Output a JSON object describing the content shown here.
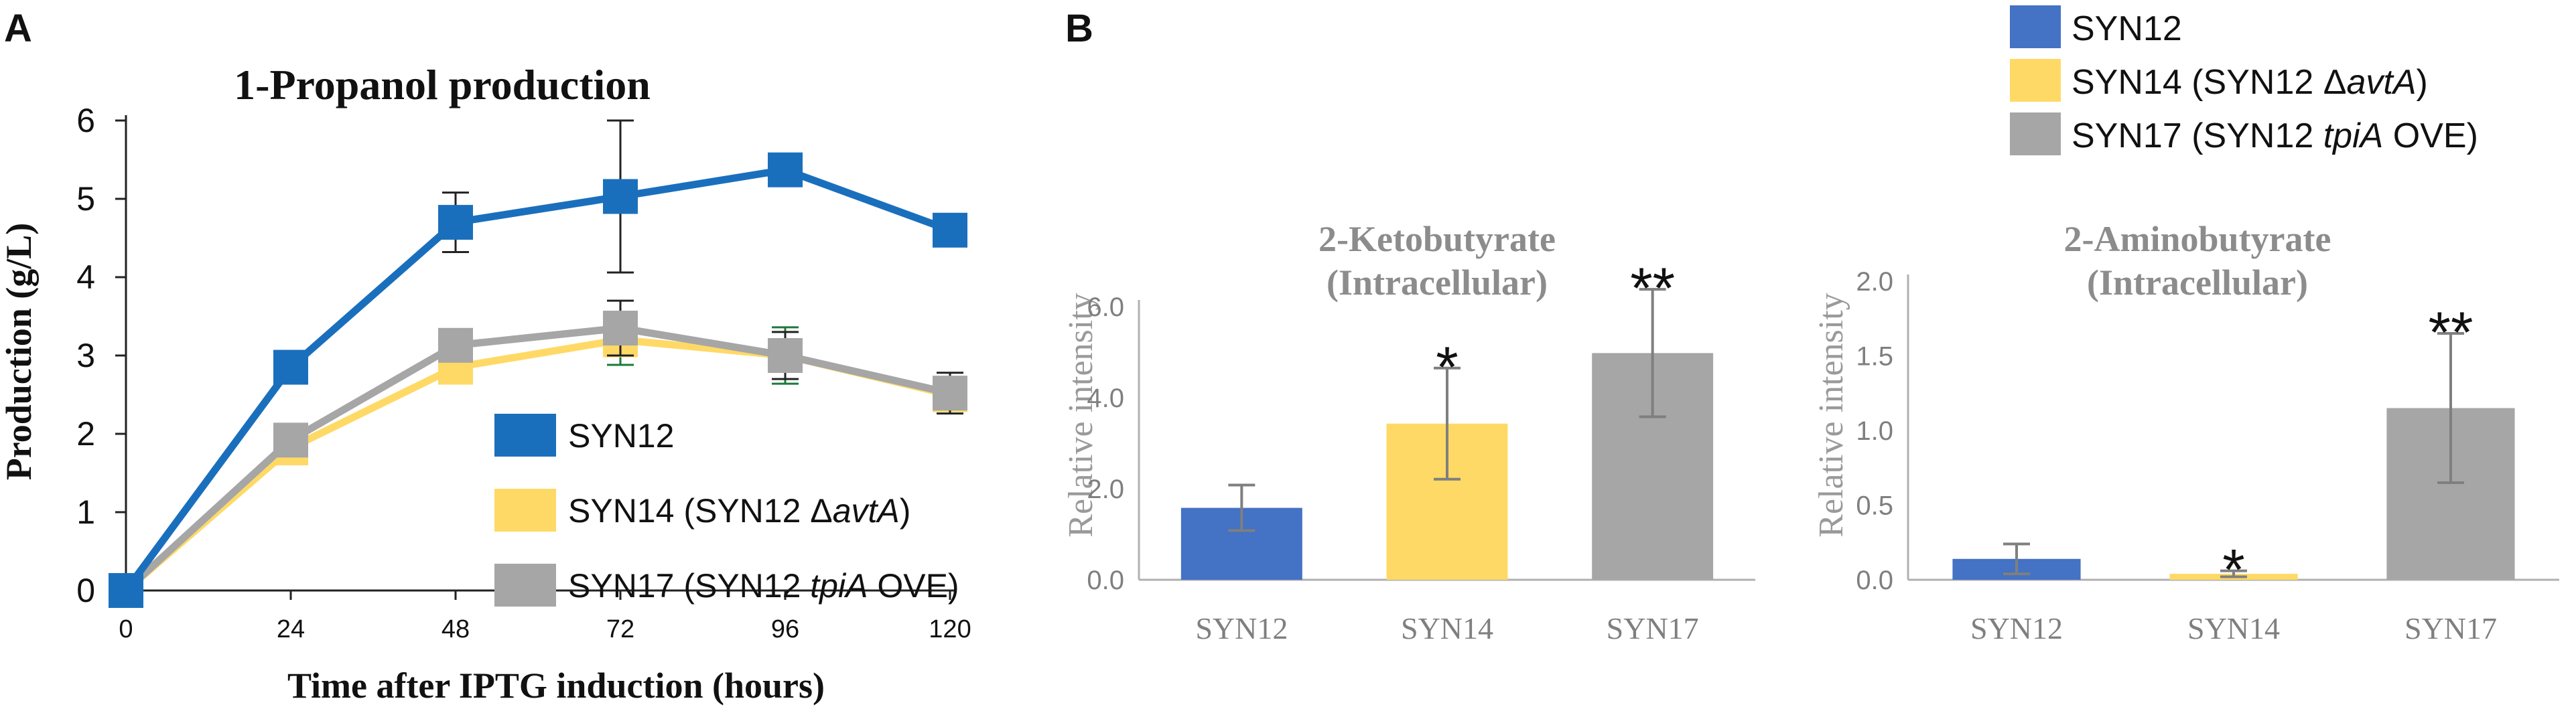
{
  "panels": {
    "a": {
      "letter": "A"
    },
    "b": {
      "letter": "B"
    }
  },
  "series_colors": {
    "SYN12": "#1a6fbd",
    "SYN14": "#ffd966",
    "SYN17": "#a6a6a6"
  },
  "bar_colors": {
    "SYN12": "#4472c4",
    "SYN14": "#ffd966",
    "SYN17": "#a6a6a6"
  },
  "chart_data": [
    {
      "id": "propanol",
      "type": "line",
      "title": "1-Propanol production",
      "xlabel": "Time after IPTG induction (hours)",
      "ylabel": "Production (g/L)",
      "x": [
        0,
        24,
        48,
        72,
        96,
        120
      ],
      "xticks": [
        "0",
        "24",
        "48",
        "72",
        "96",
        "120"
      ],
      "yticks": [
        "0",
        "1",
        "2",
        "3",
        "4",
        "5",
        "6"
      ],
      "xlim": [
        0,
        120
      ],
      "ylim": [
        0,
        6
      ],
      "series": [
        {
          "key": "SYN12",
          "name": "SYN12",
          "name_italic": "",
          "name_suffix": "",
          "values": [
            0,
            2.85,
            4.7,
            5.03,
            5.37,
            4.6
          ],
          "err": [
            0,
            0,
            0.38,
            0.97,
            0,
            0
          ]
        },
        {
          "key": "SYN14",
          "name": "SYN14 (SYN12 Δ",
          "name_italic": "avtA",
          "name_suffix": ")",
          "values": [
            0,
            1.82,
            2.85,
            3.2,
            3.0,
            2.5
          ],
          "err": [
            0,
            0,
            0,
            0.32,
            0.36,
            0
          ]
        },
        {
          "key": "SYN17",
          "name": "SYN17 (SYN12 ",
          "name_italic": "tpiA",
          "name_suffix": " OVE)",
          "values": [
            0,
            1.92,
            3.13,
            3.35,
            3.0,
            2.52
          ],
          "err": [
            0,
            0.18,
            0,
            0.35,
            0.3,
            0.26
          ]
        }
      ]
    },
    {
      "id": "ketobutyrate",
      "type": "bar",
      "title_line1": "2-Ketobutyrate",
      "title_line2": "(Intracellular)",
      "ylabel": "Relative intensity",
      "categories": [
        "SYN12",
        "SYN14",
        "SYN17"
      ],
      "values": [
        1.58,
        3.43,
        4.98
      ],
      "errors": [
        0.5,
        1.22,
        1.4
      ],
      "significance": [
        "",
        "*",
        "**"
      ],
      "yticks": [
        "0.0",
        "2.0",
        "4.0",
        "6.0"
      ],
      "ylim": [
        0,
        6.0
      ]
    },
    {
      "id": "aminobutyrate",
      "type": "bar",
      "title_line1": "2-Aminobutyrate",
      "title_line2": "(Intracellular)",
      "ylabel": "Relative intensity",
      "categories": [
        "SYN12",
        "SYN14",
        "SYN17"
      ],
      "values": [
        0.14,
        0.04,
        1.15
      ],
      "errors": [
        0.1,
        0.02,
        0.5
      ],
      "significance": [
        "",
        "*",
        "**"
      ],
      "yticks": [
        "0.0",
        "0.5",
        "1.0",
        "1.5",
        "2.0"
      ],
      "ylim": [
        0,
        2.0
      ]
    }
  ],
  "legend_b": [
    {
      "key": "SYN12",
      "name": "SYN12",
      "name_italic": "",
      "name_suffix": ""
    },
    {
      "key": "SYN14",
      "name": "SYN14 (SYN12 Δ",
      "name_italic": "avtA",
      "name_suffix": ")"
    },
    {
      "key": "SYN17",
      "name": "SYN17 (SYN12 ",
      "name_italic": "tpiA",
      "name_suffix": " OVE)"
    }
  ]
}
